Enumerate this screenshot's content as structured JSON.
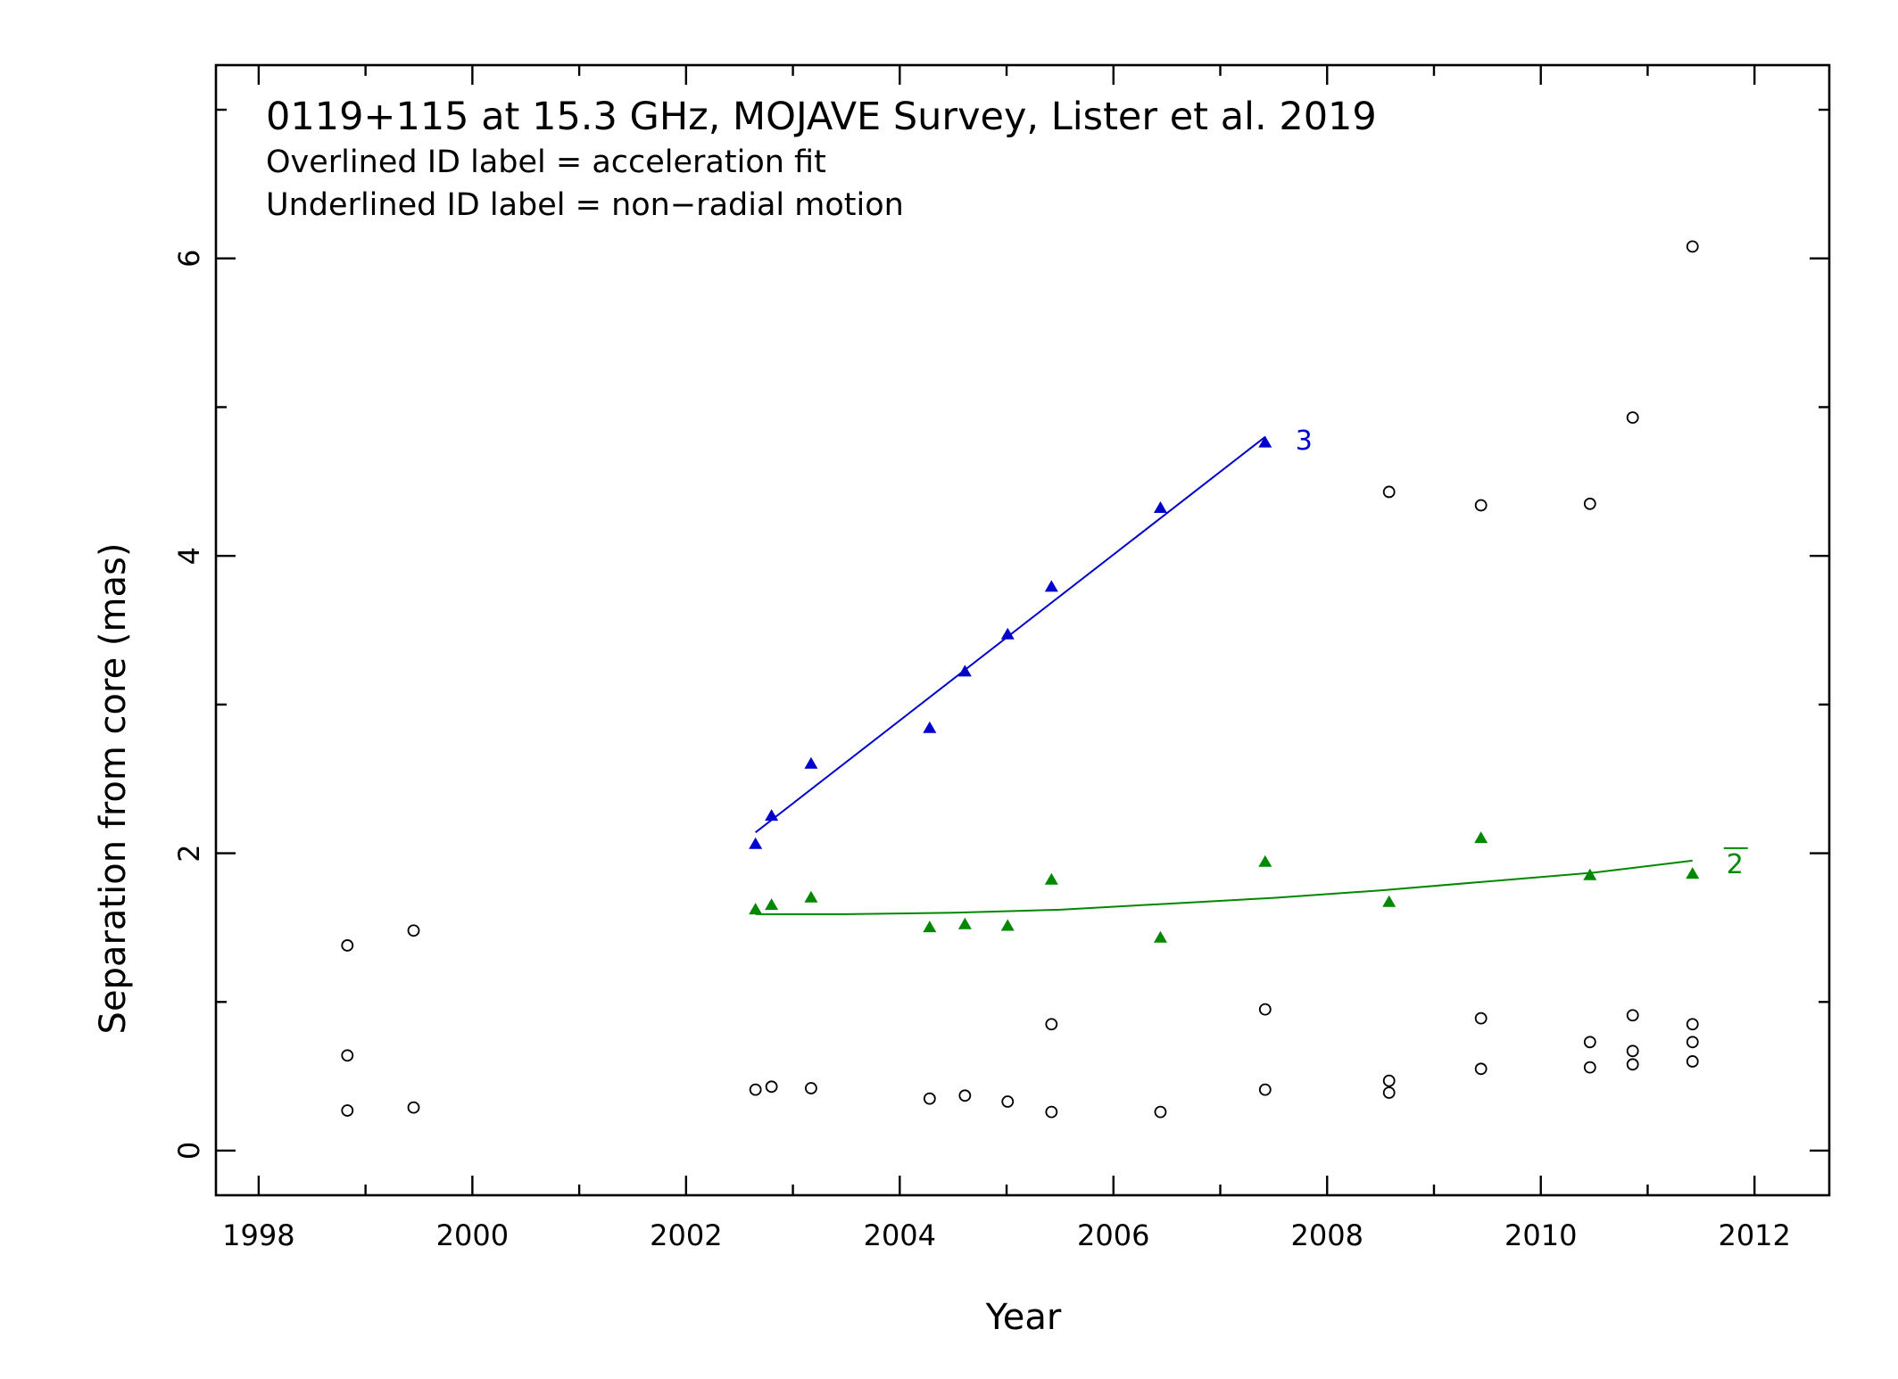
{
  "chart_data": {
    "type": "scatter",
    "title": "0119+115 at 15.3 GHz, MOJAVE Survey, Lister et al. 2019",
    "notes": [
      "Overlined ID label = acceleration fit",
      "Underlined ID label = non−radial motion"
    ],
    "xlabel": "Year",
    "ylabel": "Separation from core (mas)",
    "xlim": [
      1997.6,
      2012.7
    ],
    "ylim": [
      -0.3,
      7.3
    ],
    "xticks": [
      1998,
      2000,
      2002,
      2004,
      2006,
      2008,
      2010,
      2012
    ],
    "yticks": [
      0,
      2,
      4,
      6
    ],
    "colors": {
      "comp3": "#0000cc",
      "comp2": "#008800",
      "other": "#000000"
    },
    "series": [
      {
        "name": "3",
        "label_style": "plain",
        "color": "#0000cc",
        "marker": "triangle",
        "points": [
          [
            2002.65,
            2.06
          ],
          [
            2002.8,
            2.25
          ],
          [
            2003.17,
            2.6
          ],
          [
            2004.28,
            2.84
          ],
          [
            2004.61,
            3.22
          ],
          [
            2005.01,
            3.47
          ],
          [
            2005.42,
            3.79
          ],
          [
            2006.44,
            4.32
          ],
          [
            2007.42,
            4.76
          ]
        ],
        "fit": {
          "kind": "linear",
          "x": [
            2002.65,
            2007.42
          ],
          "y": [
            2.14,
            4.8
          ]
        }
      },
      {
        "name": "2",
        "label_style": "overlined",
        "color": "#008800",
        "marker": "triangle",
        "points": [
          [
            2002.65,
            1.62
          ],
          [
            2002.8,
            1.65
          ],
          [
            2003.17,
            1.7
          ],
          [
            2004.28,
            1.5
          ],
          [
            2004.61,
            1.52
          ],
          [
            2005.01,
            1.51
          ],
          [
            2005.42,
            1.82
          ],
          [
            2006.44,
            1.43
          ],
          [
            2007.42,
            1.94
          ],
          [
            2008.58,
            1.67
          ],
          [
            2009.44,
            2.1
          ],
          [
            2010.46,
            1.85
          ],
          [
            2011.42,
            1.86
          ]
        ],
        "fit": {
          "kind": "quadratic",
          "x": [
            2002.65,
            2003.5,
            2004.5,
            2005.5,
            2006.5,
            2007.5,
            2008.5,
            2009.5,
            2010.5,
            2011.42
          ],
          "y": [
            1.59,
            1.59,
            1.6,
            1.62,
            1.66,
            1.7,
            1.75,
            1.81,
            1.87,
            1.95
          ]
        }
      },
      {
        "marker": "circle",
        "color": "#000000",
        "points": [
          [
            1998.83,
            1.38
          ],
          [
            1998.83,
            0.64
          ],
          [
            1998.83,
            0.27
          ],
          [
            1999.45,
            1.48
          ],
          [
            1999.45,
            0.29
          ],
          [
            2002.65,
            0.41
          ],
          [
            2002.8,
            0.43
          ],
          [
            2003.17,
            0.42
          ],
          [
            2004.28,
            0.35
          ],
          [
            2004.61,
            0.37
          ],
          [
            2005.01,
            0.33
          ],
          [
            2005.42,
            0.85
          ],
          [
            2005.42,
            0.26
          ],
          [
            2006.44,
            0.26
          ],
          [
            2007.42,
            0.95
          ],
          [
            2007.42,
            0.41
          ],
          [
            2008.58,
            4.43
          ],
          [
            2008.58,
            0.47
          ],
          [
            2008.58,
            0.39
          ],
          [
            2009.44,
            4.34
          ],
          [
            2009.44,
            0.89
          ],
          [
            2009.44,
            0.55
          ],
          [
            2010.46,
            4.35
          ],
          [
            2010.46,
            0.73
          ],
          [
            2010.46,
            0.56
          ],
          [
            2010.86,
            4.93
          ],
          [
            2010.86,
            0.91
          ],
          [
            2010.86,
            0.67
          ],
          [
            2010.86,
            0.58
          ],
          [
            2011.42,
            6.08
          ],
          [
            2011.42,
            0.85
          ],
          [
            2011.42,
            0.73
          ],
          [
            2011.42,
            0.6
          ]
        ]
      }
    ]
  }
}
